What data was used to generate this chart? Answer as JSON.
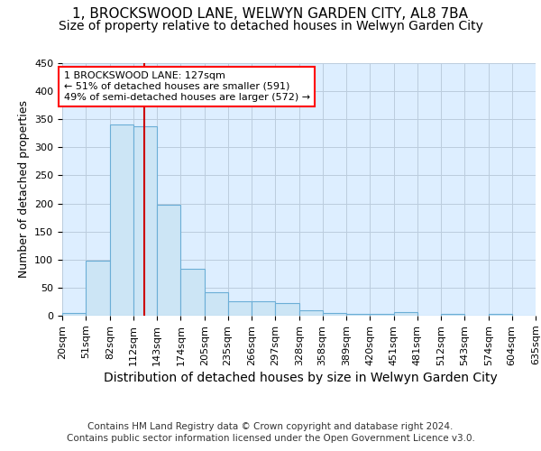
{
  "title": "1, BROCKSWOOD LANE, WELWYN GARDEN CITY, AL8 7BA",
  "subtitle": "Size of property relative to detached houses in Welwyn Garden City",
  "xlabel": "Distribution of detached houses by size in Welwyn Garden City",
  "ylabel": "Number of detached properties",
  "footer_line1": "Contains HM Land Registry data © Crown copyright and database right 2024.",
  "footer_line2": "Contains public sector information licensed under the Open Government Licence v3.0.",
  "bin_edges": [
    20,
    51,
    82,
    112,
    143,
    174,
    205,
    235,
    266,
    297,
    328,
    358,
    389,
    420,
    451,
    481,
    512,
    543,
    574,
    604,
    635
  ],
  "bar_heights": [
    5,
    98,
    340,
    337,
    197,
    84,
    42,
    26,
    26,
    23,
    9,
    5,
    4,
    3,
    6,
    0,
    4,
    0,
    3,
    0
  ],
  "bar_color": "#cce5f5",
  "bar_edge_color": "#6baed6",
  "property_size": 127,
  "annotation_text": "1 BROCKSWOOD LANE: 127sqm\n← 51% of detached houses are smaller (591)\n49% of semi-detached houses are larger (572) →",
  "annotation_box_color": "white",
  "annotation_box_edge": "red",
  "vline_color": "#cc0000",
  "ylim": [
    0,
    450
  ],
  "grid_color": "#bbccdd",
  "background_color": "#ddeeff",
  "title_fontsize": 11,
  "subtitle_fontsize": 10,
  "tick_label_fontsize": 8,
  "ylabel_fontsize": 9,
  "xlabel_fontsize": 10,
  "footer_fontsize": 7.5
}
